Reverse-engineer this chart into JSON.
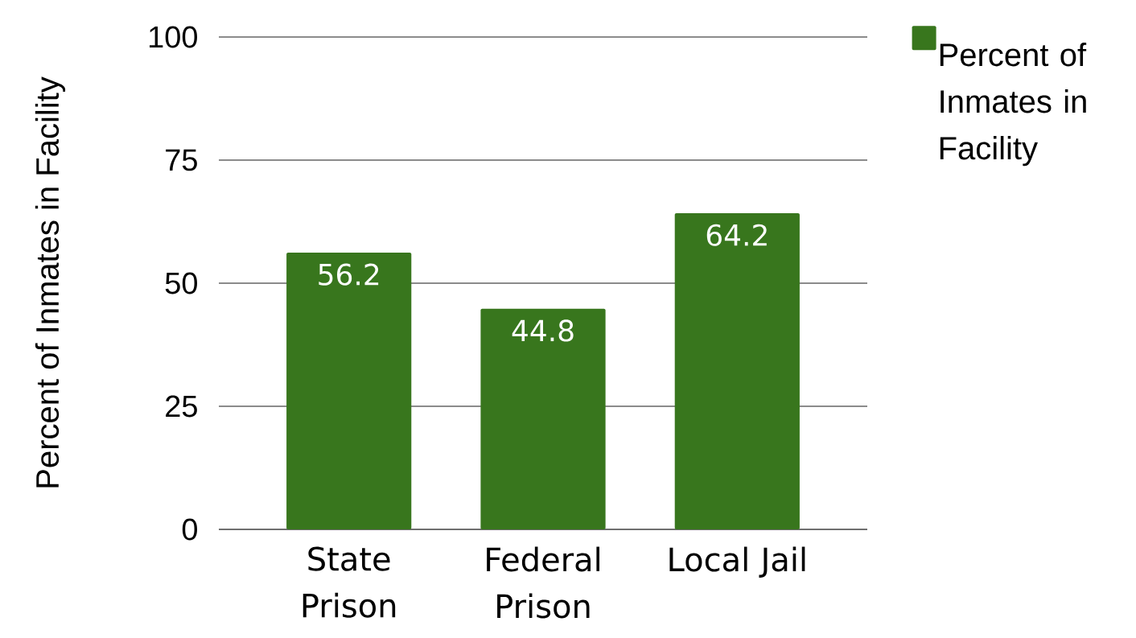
{
  "chart_data": {
    "type": "bar",
    "ylabel": "Percent of Inmates in Facility",
    "categories": [
      "State Prison",
      "Federal Prison",
      "Local Jail"
    ],
    "series": [
      {
        "name": "Percent of Inmates in Facility",
        "color": "#38761d",
        "values": [
          56.2,
          44.8,
          64.2
        ]
      }
    ],
    "ylim": [
      0,
      100
    ],
    "yticks": [
      0,
      25,
      50,
      75,
      100
    ],
    "grid": "y",
    "legend": "top right",
    "data_labels": true
  }
}
